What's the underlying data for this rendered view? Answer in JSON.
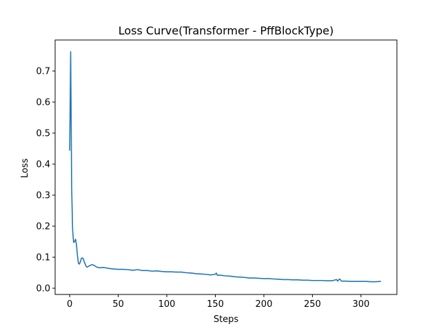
{
  "chart_data": {
    "type": "line",
    "title": "Loss Curve(Transformer - PffBlockType)",
    "xlabel": "Steps",
    "ylabel": "Loss",
    "xlim": [
      -15,
      337
    ],
    "ylim": [
      -0.02,
      0.8
    ],
    "xticks": [
      0,
      50,
      100,
      150,
      200,
      250,
      300
    ],
    "yticks": [
      0.0,
      0.1,
      0.2,
      0.3,
      0.4,
      0.5,
      0.6,
      0.7
    ],
    "grid": false,
    "line_color": "#1f77b4",
    "series": [
      {
        "points": [
          [
            0,
            0.445
          ],
          [
            1,
            0.762
          ],
          [
            2,
            0.33
          ],
          [
            3,
            0.19
          ],
          [
            4,
            0.148
          ],
          [
            5,
            0.15
          ],
          [
            6,
            0.158
          ],
          [
            7,
            0.14
          ],
          [
            8,
            0.105
          ],
          [
            9,
            0.08
          ],
          [
            10,
            0.078
          ],
          [
            11,
            0.085
          ],
          [
            12,
            0.096
          ],
          [
            13,
            0.098
          ],
          [
            14,
            0.095
          ],
          [
            15,
            0.085
          ],
          [
            16,
            0.078
          ],
          [
            17,
            0.07
          ],
          [
            18,
            0.068
          ],
          [
            19,
            0.07
          ],
          [
            20,
            0.072
          ],
          [
            21,
            0.073
          ],
          [
            22,
            0.075
          ],
          [
            23,
            0.076
          ],
          [
            24,
            0.075
          ],
          [
            25,
            0.074
          ],
          [
            28,
            0.068
          ],
          [
            31,
            0.066
          ],
          [
            35,
            0.067
          ],
          [
            40,
            0.064
          ],
          [
            45,
            0.062
          ],
          [
            50,
            0.061
          ],
          [
            55,
            0.061
          ],
          [
            60,
            0.06
          ],
          [
            65,
            0.058
          ],
          [
            70,
            0.06
          ],
          [
            75,
            0.057
          ],
          [
            80,
            0.057
          ],
          [
            85,
            0.055
          ],
          [
            90,
            0.056
          ],
          [
            95,
            0.054
          ],
          [
            100,
            0.053
          ],
          [
            105,
            0.053
          ],
          [
            110,
            0.052
          ],
          [
            115,
            0.052
          ],
          [
            120,
            0.05
          ],
          [
            125,
            0.049
          ],
          [
            130,
            0.047
          ],
          [
            135,
            0.046
          ],
          [
            140,
            0.045
          ],
          [
            145,
            0.043
          ],
          [
            150,
            0.045
          ],
          [
            151,
            0.049
          ],
          [
            152,
            0.042
          ],
          [
            155,
            0.042
          ],
          [
            160,
            0.04
          ],
          [
            165,
            0.039
          ],
          [
            170,
            0.037
          ],
          [
            175,
            0.036
          ],
          [
            180,
            0.035
          ],
          [
            185,
            0.033
          ],
          [
            190,
            0.033
          ],
          [
            195,
            0.032
          ],
          [
            200,
            0.031
          ],
          [
            205,
            0.031
          ],
          [
            210,
            0.03
          ],
          [
            215,
            0.029
          ],
          [
            220,
            0.028
          ],
          [
            225,
            0.028
          ],
          [
            230,
            0.027
          ],
          [
            235,
            0.027
          ],
          [
            240,
            0.026
          ],
          [
            245,
            0.026
          ],
          [
            250,
            0.025
          ],
          [
            255,
            0.025
          ],
          [
            260,
            0.025
          ],
          [
            265,
            0.024
          ],
          [
            270,
            0.024
          ],
          [
            275,
            0.028
          ],
          [
            276,
            0.023
          ],
          [
            278,
            0.03
          ],
          [
            280,
            0.023
          ],
          [
            285,
            0.023
          ],
          [
            290,
            0.022
          ],
          [
            295,
            0.022
          ],
          [
            300,
            0.022
          ],
          [
            305,
            0.022
          ],
          [
            310,
            0.021
          ],
          [
            315,
            0.021
          ],
          [
            320,
            0.022
          ]
        ]
      }
    ]
  }
}
